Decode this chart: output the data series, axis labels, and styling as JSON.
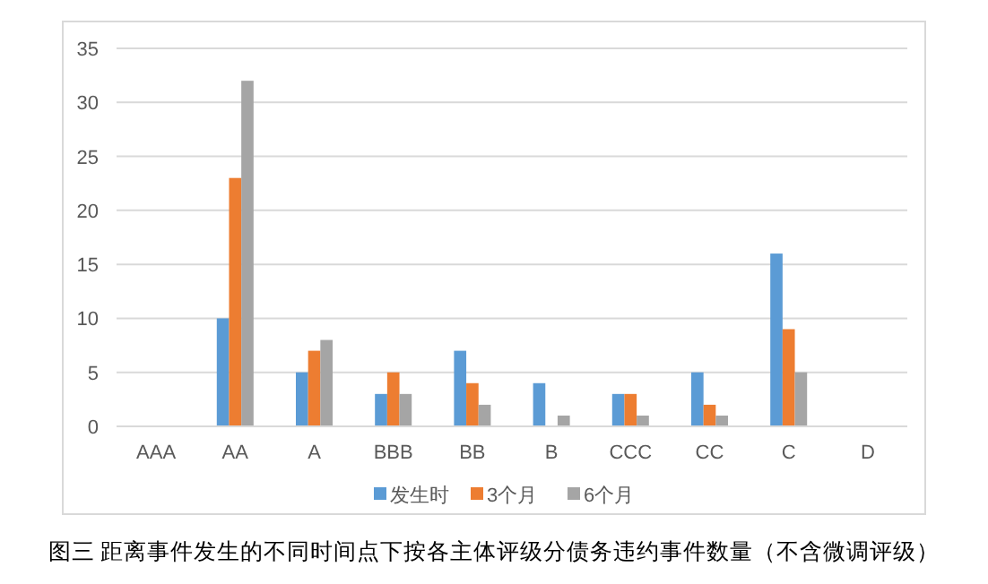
{
  "chart_data": {
    "type": "bar",
    "categories": [
      "AAA",
      "AA",
      "A",
      "BBB",
      "BB",
      "B",
      "CCC",
      "CC",
      "C",
      "D"
    ],
    "series": [
      {
        "name": "发生时",
        "color": "#5b9bd5",
        "values": [
          0,
          10,
          5,
          3,
          7,
          4,
          3,
          5,
          16,
          0
        ]
      },
      {
        "name": "3个月",
        "color": "#ed7d31",
        "values": [
          0,
          23,
          7,
          5,
          4,
          0,
          3,
          2,
          9,
          0
        ]
      },
      {
        "name": "6个月",
        "color": "#a5a5a5",
        "values": [
          0,
          32,
          8,
          3,
          2,
          1,
          1,
          1,
          5,
          0
        ]
      }
    ],
    "ylim": [
      0,
      35
    ],
    "yticks": [
      0,
      5,
      10,
      15,
      20,
      25,
      30,
      35
    ],
    "grid": "y",
    "legend": "bottom",
    "annotations": [
      "图三  距离事件发生的不同时间点下按各主体评级分债务违约事件数量（不含微调评级）"
    ]
  }
}
